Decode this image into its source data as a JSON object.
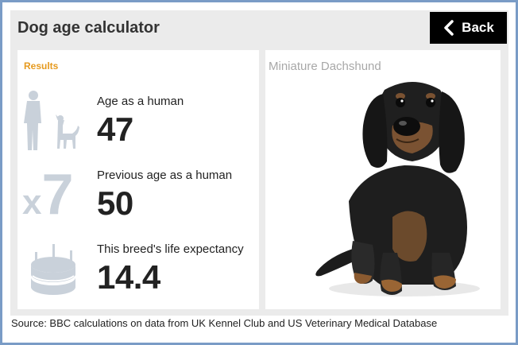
{
  "header": {
    "title": "Dog age calculator",
    "back_label": "Back"
  },
  "results": {
    "label": "Results",
    "stats": [
      {
        "label": "Age as a human",
        "value": "47",
        "icon": "human-and-dog-icon"
      },
      {
        "label": "Previous age as a human",
        "value": "50",
        "icon": "times-seven-icon"
      },
      {
        "label": "This breed's life expectancy",
        "value": "14.4",
        "icon": "birthday-cake-icon"
      }
    ],
    "multiplier": {
      "x": "x",
      "n": "7"
    }
  },
  "breed": {
    "name": "Miniature Dachshund",
    "image": "dachshund-photo"
  },
  "footer": {
    "source": "Source: BBC calculations on data from UK Kennel Club and US Veterinary Medical Database"
  },
  "colors": {
    "accent": "#e69a1e",
    "frame": "#7a9cc6",
    "icon": "#c9d1da",
    "panel": "#ebebeb"
  }
}
